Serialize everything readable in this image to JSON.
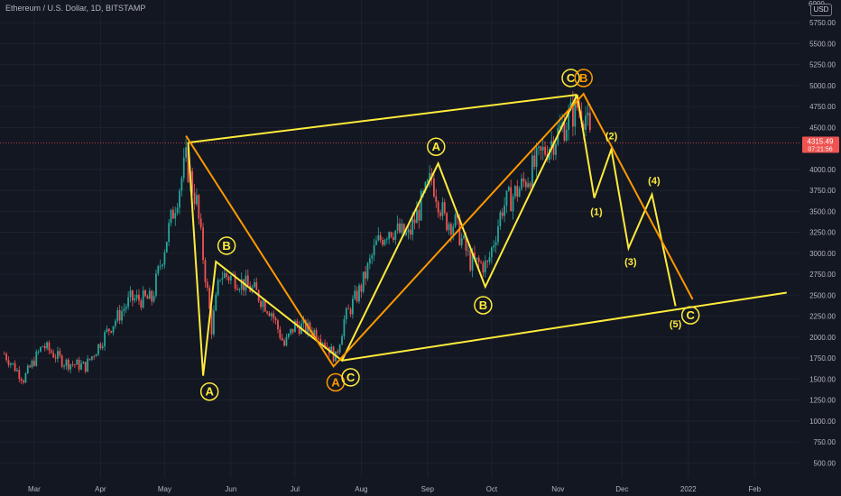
{
  "header": {
    "title": "Ethereum / U.S. Dollar, 1D, BITSTAMP"
  },
  "price_axis": {
    "currency": "USD",
    "top_label": "6000",
    "ticks": [
      "5750.00",
      "5500.00",
      "5250.00",
      "5000.00",
      "4750.00",
      "4500.00",
      "4000.00",
      "3750.00",
      "3500.00",
      "3250.00",
      "3000.00",
      "2750.00",
      "2500.00",
      "2250.00",
      "2000.00",
      "1750.00",
      "1500.00",
      "1250.00",
      "1000.00",
      "750.00",
      "500.00"
    ],
    "current_price": "4315.49",
    "countdown": "07:21:56"
  },
  "time_axis": {
    "labels": [
      "Mar",
      "Apr",
      "May",
      "Jun",
      "Jul",
      "Aug",
      "Sep",
      "Oct",
      "Nov",
      "Dec",
      "2022",
      "Feb"
    ]
  },
  "colors": {
    "background": "#131722",
    "up": "#26a69a",
    "down": "#ef5350",
    "yellow": "#ffeb3b",
    "orange": "#ff9800",
    "price_line": "#ef5350",
    "grid": "#1e222d"
  },
  "chart_data": {
    "type": "candlestick",
    "title": "Ethereum / U.S. Dollar, 1D, BITSTAMP",
    "y_range": [
      320,
      6020
    ],
    "x_range": [
      "2021-02-13",
      "2022-02-22"
    ],
    "current_price": 4315.49,
    "anchors": [
      [
        "2021-02-15",
        1800
      ],
      [
        "2021-02-24",
        1500
      ],
      [
        "2021-03-05",
        1900
      ],
      [
        "2021-03-15",
        1700
      ],
      [
        "2021-03-25",
        1650
      ],
      [
        "2021-04-05",
        2100
      ],
      [
        "2021-04-15",
        2450
      ],
      [
        "2021-04-25",
        2450
      ],
      [
        "2021-05-05",
        3500
      ],
      [
        "2021-05-11",
        4100
      ],
      [
        "2021-05-16",
        3600
      ],
      [
        "2021-05-20",
        2750
      ],
      [
        "2021-05-23",
        2100
      ],
      [
        "2021-05-27",
        2750
      ],
      [
        "2021-06-03",
        2700
      ],
      [
        "2021-06-12",
        2550
      ],
      [
        "2021-06-20",
        2300
      ],
      [
        "2021-06-26",
        1900
      ],
      [
        "2021-07-01",
        2150
      ],
      [
        "2021-07-12",
        2050
      ],
      [
        "2021-07-20",
        1750
      ],
      [
        "2021-07-24",
        2200
      ],
      [
        "2021-08-01",
        2600
      ],
      [
        "2021-08-08",
        3100
      ],
      [
        "2021-08-14",
        3300
      ],
      [
        "2021-08-23",
        3200
      ],
      [
        "2021-09-03",
        3900
      ],
      [
        "2021-09-09",
        3400
      ],
      [
        "2021-09-14",
        3350
      ],
      [
        "2021-09-21",
        2900
      ],
      [
        "2021-09-29",
        2850
      ],
      [
        "2021-10-06",
        3550
      ],
      [
        "2021-10-15",
        3800
      ],
      [
        "2021-10-25",
        4200
      ],
      [
        "2021-11-03",
        4500
      ],
      [
        "2021-11-10",
        4750
      ],
      [
        "2021-11-14",
        4650
      ],
      [
        "2021-11-16",
        4350
      ]
    ],
    "wave_lines": [
      {
        "name": "yellow-channel-top",
        "color": "#ffeb3b",
        "points": [
          [
            "2021-05-12",
            4320
          ],
          [
            "2021-11-10",
            4890
          ]
        ]
      },
      {
        "name": "yellow-channel-bottom",
        "color": "#ffeb3b",
        "points": [
          [
            "2021-07-23",
            1720
          ],
          [
            "2022-02-16",
            2530
          ]
        ]
      },
      {
        "name": "yellow-wave-abc",
        "color": "#ffeb3b",
        "points": [
          [
            "2021-05-12",
            4320
          ],
          [
            "2021-05-19",
            1540
          ],
          [
            "2021-05-25",
            2900
          ],
          [
            "2021-07-23",
            1720
          ],
          [
            "2021-09-06",
            4070
          ],
          [
            "2021-09-28",
            2600
          ],
          [
            "2021-11-10",
            4890
          ]
        ]
      },
      {
        "name": "yellow-projection",
        "color": "#ffeb3b",
        "points": [
          [
            "2021-11-10",
            4890
          ],
          [
            "2021-11-18",
            3660
          ],
          [
            "2021-11-26",
            4240
          ],
          [
            "2021-12-04",
            3060
          ],
          [
            "2021-12-15",
            3700
          ],
          [
            "2021-12-26",
            2370
          ]
        ]
      },
      {
        "name": "orange-wave",
        "color": "#ff9800",
        "points": [
          [
            "2021-05-11",
            4400
          ],
          [
            "2021-07-19",
            1650
          ],
          [
            "2021-11-13",
            4900
          ],
          [
            "2022-01-03",
            2450
          ]
        ]
      }
    ],
    "wave_labels": [
      {
        "text": "A",
        "date": "2021-05-22",
        "price": 1350,
        "color": "#ffeb3b",
        "circle": true
      },
      {
        "text": "B",
        "date": "2021-05-30",
        "price": 3090,
        "color": "#ffeb3b",
        "circle": true
      },
      {
        "text": "A",
        "date": "2021-07-20",
        "price": 1460,
        "color": "#ff9800",
        "circle": true
      },
      {
        "text": "C",
        "date": "2021-07-27",
        "price": 1520,
        "color": "#ffeb3b",
        "circle": true
      },
      {
        "text": "A",
        "date": "2021-09-05",
        "price": 4270,
        "color": "#ffeb3b",
        "circle": true
      },
      {
        "text": "B",
        "date": "2021-09-27",
        "price": 2380,
        "color": "#ffeb3b",
        "circle": true
      },
      {
        "text": "C",
        "date": "2021-11-07",
        "price": 5090,
        "color": "#ffeb3b",
        "circle": true
      },
      {
        "text": "B",
        "date": "2021-11-13",
        "price": 5090,
        "color": "#ff9800",
        "circle": true
      },
      {
        "text": "C",
        "date": "2022-01-02",
        "price": 2260,
        "color": "#ffeb3b",
        "circle": true
      },
      {
        "text": "(1)",
        "date": "2021-11-19",
        "price": 3500,
        "color": "#ffeb3b",
        "circle": false
      },
      {
        "text": "(2)",
        "date": "2021-11-26",
        "price": 4400,
        "color": "#ffeb3b",
        "circle": false
      },
      {
        "text": "(3)",
        "date": "2021-12-05",
        "price": 2900,
        "color": "#ffeb3b",
        "circle": false
      },
      {
        "text": "(4)",
        "date": "2021-12-16",
        "price": 3870,
        "color": "#ffeb3b",
        "circle": false
      },
      {
        "text": "(5)",
        "date": "2021-12-26",
        "price": 2160,
        "color": "#ffeb3b",
        "circle": false
      }
    ]
  }
}
